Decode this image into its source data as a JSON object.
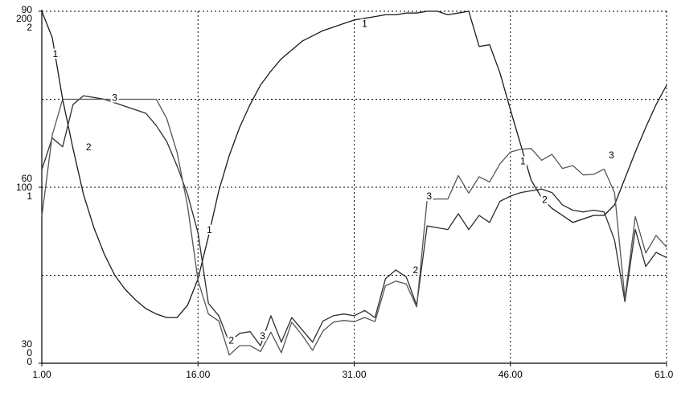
{
  "chart_data": {
    "type": "line",
    "title": "",
    "xlabel": "",
    "ylabel": "",
    "xlim": [
      1,
      61
    ],
    "x_ticks": [
      "1.00",
      "16.00",
      "31.00",
      "46.00",
      "61.00"
    ],
    "y_tick_labels": [
      {
        "frac": 1.0,
        "lines": [
          "90",
          "200",
          "2"
        ]
      },
      {
        "frac": 0.5,
        "lines": [
          "60",
          "100",
          "1"
        ]
      },
      {
        "frac": 0.0,
        "lines": [
          "30",
          "0",
          "0"
        ]
      }
    ],
    "grid": true,
    "colors": {
      "background": "#ffffff",
      "grid": "#000000",
      "series_1": "#1a1a1a",
      "series_2": "#2e2e2e",
      "series_3": "#555555"
    },
    "series": [
      {
        "name": "1",
        "axis": "middle",
        "ylim": [
          0,
          200
        ],
        "label_points": [
          [
            2.5,
            175
          ],
          [
            2.3,
            175
          ],
          [
            17.1,
            75
          ],
          [
            32.0,
            192
          ],
          [
            47.2,
            114
          ]
        ],
        "points": [
          [
            1.0,
            200
          ],
          [
            2.0,
            185
          ],
          [
            3.0,
            150
          ],
          [
            4.0,
            122
          ],
          [
            5.0,
            96
          ],
          [
            6.0,
            77
          ],
          [
            7.0,
            62
          ],
          [
            8.0,
            50
          ],
          [
            9.0,
            42
          ],
          [
            10.0,
            36
          ],
          [
            11.0,
            31
          ],
          [
            12.0,
            28
          ],
          [
            13.0,
            26
          ],
          [
            14.0,
            26
          ],
          [
            15.0,
            33
          ],
          [
            16.0,
            48
          ],
          [
            17.0,
            72
          ],
          [
            18.0,
            98
          ],
          [
            19.0,
            118
          ],
          [
            20.0,
            134
          ],
          [
            21.0,
            147
          ],
          [
            22.0,
            158
          ],
          [
            23.0,
            166
          ],
          [
            24.0,
            173
          ],
          [
            25.0,
            178
          ],
          [
            26.0,
            183
          ],
          [
            27.0,
            186
          ],
          [
            28.0,
            189
          ],
          [
            29.0,
            191
          ],
          [
            30.0,
            193
          ],
          [
            31.0,
            195
          ],
          [
            32.0,
            196
          ],
          [
            33.0,
            197
          ],
          [
            34.0,
            198
          ],
          [
            35.0,
            198
          ],
          [
            36.0,
            199
          ],
          [
            37.0,
            199
          ],
          [
            38.0,
            200
          ],
          [
            39.0,
            200
          ],
          [
            40.0,
            198
          ],
          [
            41.0,
            199
          ],
          [
            42.0,
            200
          ],
          [
            43.0,
            180
          ],
          [
            44.0,
            181
          ],
          [
            45.0,
            165
          ],
          [
            46.0,
            144
          ],
          [
            47.0,
            124
          ],
          [
            48.0,
            104
          ],
          [
            49.0,
            94
          ],
          [
            50.0,
            88
          ],
          [
            51.0,
            84
          ],
          [
            52.0,
            80
          ],
          [
            53.0,
            82
          ],
          [
            54.0,
            84
          ],
          [
            55.0,
            84
          ],
          [
            56.0,
            90
          ],
          [
            57.0,
            105
          ],
          [
            58.0,
            120
          ],
          [
            59.0,
            134
          ],
          [
            60.0,
            147
          ],
          [
            61.0,
            158
          ]
        ]
      },
      {
        "name": "2",
        "axis": "right",
        "ylim": [
          0,
          2
        ],
        "label_points": [
          [
            5.5,
            1.22
          ],
          [
            19.2,
            0.12
          ],
          [
            36.9,
            0.52
          ],
          [
            49.3,
            0.92
          ]
        ],
        "points": [
          [
            1.0,
            1.1
          ],
          [
            2.0,
            1.28
          ],
          [
            3.0,
            1.23
          ],
          [
            4.0,
            1.47
          ],
          [
            5.0,
            1.52
          ],
          [
            6.0,
            1.51
          ],
          [
            7.0,
            1.5
          ],
          [
            8.0,
            1.48
          ],
          [
            9.0,
            1.46
          ],
          [
            10.0,
            1.44
          ],
          [
            11.0,
            1.42
          ],
          [
            12.0,
            1.35
          ],
          [
            13.0,
            1.26
          ],
          [
            14.0,
            1.12
          ],
          [
            15.0,
            0.96
          ],
          [
            16.0,
            0.74
          ],
          [
            17.0,
            0.34
          ],
          [
            18.0,
            0.27
          ],
          [
            19.0,
            0.12
          ],
          [
            20.0,
            0.17
          ],
          [
            21.0,
            0.18
          ],
          [
            22.0,
            0.1
          ],
          [
            23.0,
            0.27
          ],
          [
            24.0,
            0.12
          ],
          [
            25.0,
            0.26
          ],
          [
            26.0,
            0.19
          ],
          [
            27.0,
            0.12
          ],
          [
            28.0,
            0.24
          ],
          [
            29.0,
            0.27
          ],
          [
            30.0,
            0.28
          ],
          [
            31.0,
            0.27
          ],
          [
            32.0,
            0.3
          ],
          [
            33.0,
            0.26
          ],
          [
            34.0,
            0.48
          ],
          [
            35.0,
            0.53
          ],
          [
            36.0,
            0.49
          ],
          [
            37.0,
            0.33
          ],
          [
            38.0,
            0.78
          ],
          [
            39.0,
            0.77
          ],
          [
            40.0,
            0.76
          ],
          [
            41.0,
            0.85
          ],
          [
            42.0,
            0.76
          ],
          [
            43.0,
            0.84
          ],
          [
            44.0,
            0.8
          ],
          [
            45.0,
            0.92
          ],
          [
            46.0,
            0.95
          ],
          [
            47.0,
            0.97
          ],
          [
            48.0,
            0.98
          ],
          [
            49.0,
            0.99
          ],
          [
            50.0,
            0.97
          ],
          [
            51.0,
            0.9
          ],
          [
            52.0,
            0.87
          ],
          [
            53.0,
            0.86
          ],
          [
            54.0,
            0.87
          ],
          [
            55.0,
            0.86
          ],
          [
            56.0,
            0.7
          ],
          [
            57.0,
            0.35
          ],
          [
            58.0,
            0.76
          ],
          [
            59.0,
            0.55
          ],
          [
            60.0,
            0.63
          ],
          [
            61.0,
            0.6
          ]
        ]
      },
      {
        "name": "3",
        "axis": "left",
        "ylim": [
          30,
          90
        ],
        "label_points": [
          [
            8.0,
            75
          ],
          [
            22.2,
            34.4
          ],
          [
            38.2,
            58.2
          ],
          [
            55.7,
            65.2
          ]
        ],
        "points": [
          [
            1.0,
            55.0
          ],
          [
            2.0,
            68.9
          ],
          [
            3.0,
            75.0
          ],
          [
            4.0,
            75.0
          ],
          [
            5.0,
            75.0
          ],
          [
            6.0,
            75.0
          ],
          [
            7.0,
            75.0
          ],
          [
            8.0,
            75.0
          ],
          [
            9.0,
            75.0
          ],
          [
            10.0,
            75.0
          ],
          [
            11.0,
            75.0
          ],
          [
            12.0,
            75.0
          ],
          [
            13.0,
            71.7
          ],
          [
            14.0,
            65.9
          ],
          [
            15.0,
            56.8
          ],
          [
            16.0,
            44.1
          ],
          [
            17.0,
            38.4
          ],
          [
            18.0,
            37.2
          ],
          [
            19.0,
            31.4
          ],
          [
            20.0,
            33.0
          ],
          [
            21.0,
            33.0
          ],
          [
            22.0,
            32.0
          ],
          [
            23.0,
            35.3
          ],
          [
            24.0,
            31.8
          ],
          [
            25.0,
            37.0
          ],
          [
            26.0,
            34.8
          ],
          [
            27.0,
            32.2
          ],
          [
            28.0,
            35.5
          ],
          [
            29.0,
            37.0
          ],
          [
            30.0,
            37.3
          ],
          [
            31.0,
            37.1
          ],
          [
            32.0,
            37.8
          ],
          [
            33.0,
            37.1
          ],
          [
            34.0,
            43.2
          ],
          [
            35.0,
            44.0
          ],
          [
            36.0,
            43.5
          ],
          [
            37.0,
            39.6
          ],
          [
            38.0,
            57.9
          ],
          [
            39.0,
            58.0
          ],
          [
            40.0,
            58.0
          ],
          [
            41.0,
            62.0
          ],
          [
            42.0,
            59.0
          ],
          [
            43.0,
            61.8
          ],
          [
            44.0,
            60.9
          ],
          [
            45.0,
            64.0
          ],
          [
            46.0,
            66.0
          ],
          [
            47.0,
            66.5
          ],
          [
            48.0,
            66.6
          ],
          [
            49.0,
            64.6
          ],
          [
            50.0,
            65.6
          ],
          [
            51.0,
            63.2
          ],
          [
            52.0,
            63.7
          ],
          [
            53.0,
            62.1
          ],
          [
            54.0,
            62.2
          ],
          [
            55.0,
            63.1
          ],
          [
            56.0,
            59.1
          ],
          [
            57.0,
            41.0
          ],
          [
            58.0,
            55.0
          ],
          [
            59.0,
            48.8
          ],
          [
            60.0,
            51.8
          ],
          [
            61.0,
            49.8
          ]
        ]
      }
    ]
  }
}
